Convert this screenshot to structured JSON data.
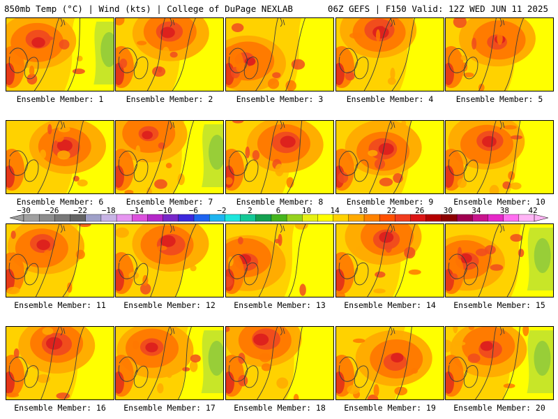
{
  "header": {
    "left": "850mb Temp (°C) | Wind (kts) | College of DuPage NEXLAB",
    "right": "06Z GEFS | F150 Valid: 12Z WED JUN 11 2025"
  },
  "members": [
    {
      "label": "Ensemble Member: 1",
      "hot_center": [
        0.3,
        0.3
      ],
      "intensity": 0.75,
      "cool_east": 0.7
    },
    {
      "label": "Ensemble Member: 2",
      "hot_center": [
        0.5,
        0.2
      ],
      "intensity": 0.8,
      "cool_east": 0.3
    },
    {
      "label": "Ensemble Member: 3",
      "hot_center": [
        0.2,
        0.6
      ],
      "intensity": 0.6,
      "cool_east": 0.1
    },
    {
      "label": "Ensemble Member: 4",
      "hot_center": [
        0.4,
        0.2
      ],
      "intensity": 0.9,
      "cool_east": 0.2
    },
    {
      "label": "Ensemble Member: 5",
      "hot_center": [
        0.5,
        0.3
      ],
      "intensity": 0.6,
      "cool_east": 0.1
    },
    {
      "label": "Ensemble Member: 6",
      "hot_center": [
        0.55,
        0.35
      ],
      "intensity": 0.85,
      "cool_east": 0.0
    },
    {
      "label": "Ensemble Member: 7",
      "hot_center": [
        0.3,
        0.2
      ],
      "intensity": 0.6,
      "cool_east": 0.7
    },
    {
      "label": "Ensemble Member: 8",
      "hot_center": [
        0.55,
        0.3
      ],
      "intensity": 0.85,
      "cool_east": 0.1
    },
    {
      "label": "Ensemble Member: 9",
      "hot_center": [
        0.45,
        0.4
      ],
      "intensity": 0.85,
      "cool_east": 0.0
    },
    {
      "label": "Ensemble Member: 10",
      "hot_center": [
        0.4,
        0.3
      ],
      "intensity": 0.8,
      "cool_east": 0.0
    },
    {
      "label": "Ensemble Member: 11",
      "hot_center": [
        0.35,
        0.3
      ],
      "intensity": 0.75,
      "cool_east": 0.0
    },
    {
      "label": "Ensemble Member: 12",
      "hot_center": [
        0.5,
        0.25
      ],
      "intensity": 0.85,
      "cool_east": 0.0
    },
    {
      "label": "Ensemble Member: 13",
      "hot_center": [
        0.2,
        0.5
      ],
      "intensity": 0.7,
      "cool_east": 0.1
    },
    {
      "label": "Ensemble Member: 14",
      "hot_center": [
        0.45,
        0.2
      ],
      "intensity": 0.8,
      "cool_east": 0.2
    },
    {
      "label": "Ensemble Member: 15",
      "hot_center": [
        0.2,
        0.5
      ],
      "intensity": 0.7,
      "cool_east": 0.8
    },
    {
      "label": "Ensemble Member: 16",
      "hot_center": [
        0.45,
        0.25
      ],
      "intensity": 0.9,
      "cool_east": 0.0
    },
    {
      "label": "Ensemble Member: 17",
      "hot_center": [
        0.35,
        0.3
      ],
      "intensity": 0.7,
      "cool_east": 0.7
    },
    {
      "label": "Ensemble Member: 18",
      "hot_center": [
        0.35,
        0.2
      ],
      "intensity": 0.85,
      "cool_east": 0.1
    },
    {
      "label": "Ensemble Member: 19",
      "hot_center": [
        0.55,
        0.45
      ],
      "intensity": 0.7,
      "cool_east": 0.1
    },
    {
      "label": "Ensemble Member: 20",
      "hot_center": [
        0.4,
        0.3
      ],
      "intensity": 0.7,
      "cool_east": 0.8
    }
  ],
  "colorbar": {
    "tick_labels": [
      "-30",
      "-26",
      "-22",
      "-18",
      "-14",
      "-10",
      "-6",
      "-2",
      "2",
      "6",
      "10",
      "14",
      "18",
      "22",
      "26",
      "30",
      "34",
      "38",
      "42"
    ],
    "colors": [
      "#a0a0a0",
      "#8c8c8c",
      "#787878",
      "#646464",
      "#9fa0c8",
      "#c8b4e6",
      "#e696f0",
      "#dc50dc",
      "#b428c8",
      "#7828c8",
      "#3c28dc",
      "#1e64f0",
      "#1eb4f0",
      "#1ee6dc",
      "#14c896",
      "#14a050",
      "#46b41e",
      "#96d21e",
      "#e6f014",
      "#ffff00",
      "#ffd200",
      "#ffaa00",
      "#ff8200",
      "#ff5000",
      "#f03c1e",
      "#dc1414",
      "#b40000",
      "#8c0000",
      "#a00050",
      "#c8148c",
      "#e628c8",
      "#ff6ef0",
      "#ffb4f5"
    ],
    "unit": "°C"
  },
  "field_colors": {
    "cool": "#8cc83c",
    "light_green": "#c8e628",
    "yellow": "#ffff00",
    "gold": "#ffd200",
    "orange": "#ffaa00",
    "dark_orange": "#ff7800",
    "red_orange": "#f04b1e",
    "red": "#dc1e1e",
    "contour": "#3c3c3c"
  }
}
